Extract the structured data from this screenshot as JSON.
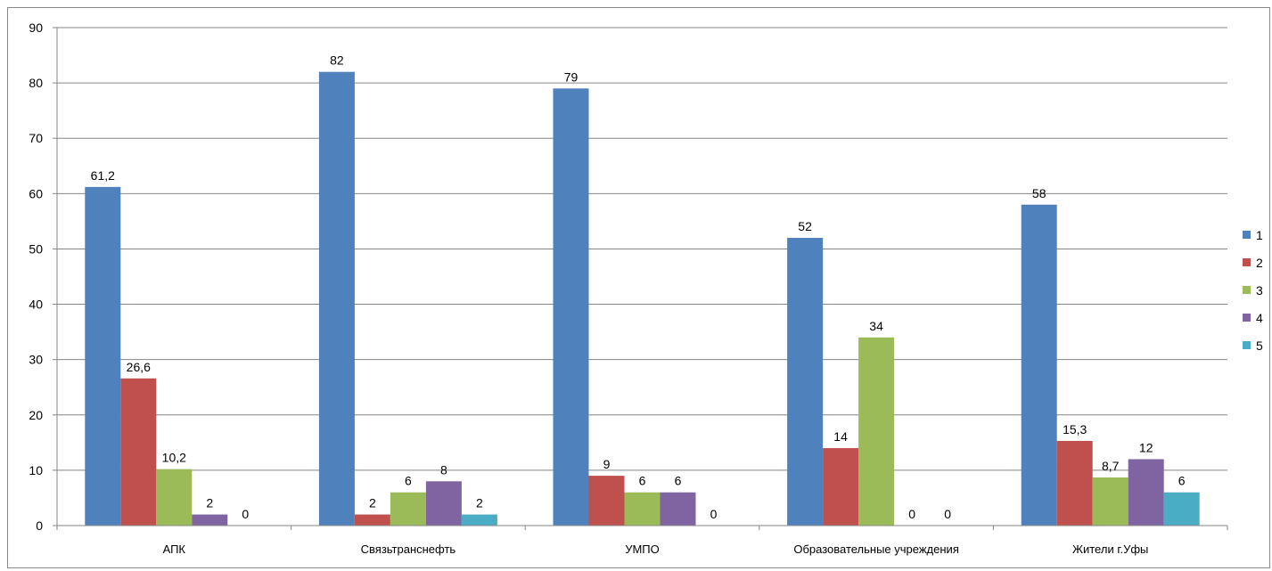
{
  "chart_data": {
    "type": "bar",
    "categories": [
      "АПК",
      "Связьтранснефть",
      "УМПО",
      "Образовательные учреждения",
      "Жители г.Уфы"
    ],
    "series": [
      {
        "name": "1",
        "color": "#4f81bd",
        "values": [
          61.2,
          82,
          79,
          52,
          58
        ],
        "labels": [
          "61,2",
          "82",
          "79",
          "52",
          "58"
        ]
      },
      {
        "name": "2",
        "color": "#c0504d",
        "values": [
          26.6,
          2,
          9,
          14,
          15.3
        ],
        "labels": [
          "26,6",
          "2",
          "9",
          "14",
          "15,3"
        ]
      },
      {
        "name": "3",
        "color": "#9bbb59",
        "values": [
          10.2,
          6,
          6,
          34,
          8.7
        ],
        "labels": [
          "10,2",
          "6",
          "6",
          "34",
          "8,7"
        ]
      },
      {
        "name": "4",
        "color": "#8064a2",
        "values": [
          2,
          8,
          6,
          0,
          12
        ],
        "labels": [
          "2",
          "8",
          "6",
          "0",
          "12"
        ]
      },
      {
        "name": "5",
        "color": "#4bacc6",
        "values": [
          0,
          2,
          0,
          0,
          6
        ],
        "labels": [
          "0",
          "2",
          "0",
          "0",
          "6"
        ]
      }
    ],
    "ylim": [
      0,
      90
    ],
    "yticks": [
      0,
      10,
      20,
      30,
      40,
      50,
      60,
      70,
      80,
      90
    ],
    "grid": true,
    "legend": "right"
  }
}
